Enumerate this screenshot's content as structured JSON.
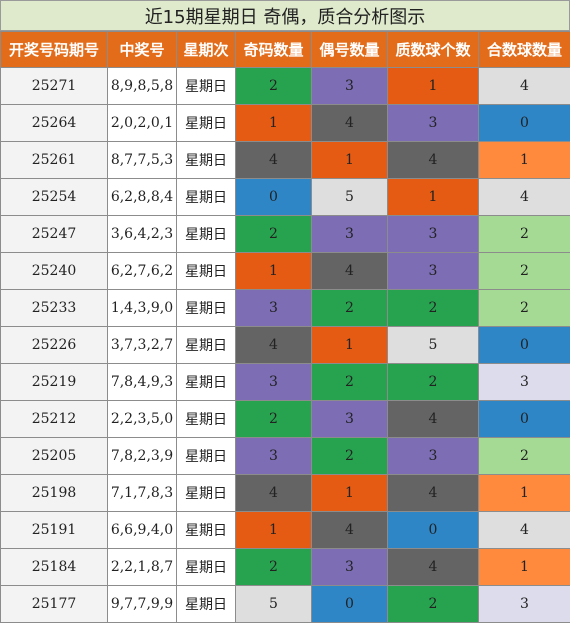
{
  "title": "近15期星期日 奇偶，质合分析图示",
  "headers": [
    "开奖号码期号",
    "中奖号",
    "星期次",
    "奇码数量",
    "偶号数量",
    "质数球个数",
    "合数球数量"
  ],
  "colors": {
    "header_bg": "#e36c1a",
    "title_bg": "#dfeacc",
    "green": "#27a350",
    "purple": "#7c6db4",
    "orange": "#e55b13",
    "dark_gray": "#646464",
    "blue": "#2e86c7",
    "light_gray": "#dedede",
    "light_orange": "#ff8a3d",
    "light_green": "#a4da94",
    "lavender": "#dcdcec"
  },
  "rows": [
    {
      "period": "25271",
      "numbers": "8,9,8,5,8",
      "weekday": "星期日",
      "odd": "2",
      "odd_color": "green",
      "even": "3",
      "even_color": "purple",
      "prime": "1",
      "prime_color": "orange",
      "composite": "4",
      "composite_color": "light_gray"
    },
    {
      "period": "25264",
      "numbers": "2,0,2,0,1",
      "weekday": "星期日",
      "odd": "1",
      "odd_color": "orange",
      "even": "4",
      "even_color": "dark_gray",
      "prime": "3",
      "prime_color": "purple",
      "composite": "0",
      "composite_color": "blue"
    },
    {
      "period": "25261",
      "numbers": "8,7,7,5,3",
      "weekday": "星期日",
      "odd": "4",
      "odd_color": "dark_gray",
      "even": "1",
      "even_color": "orange",
      "prime": "4",
      "prime_color": "dark_gray",
      "composite": "1",
      "composite_color": "light_orange"
    },
    {
      "period": "25254",
      "numbers": "6,2,8,8,4",
      "weekday": "星期日",
      "odd": "0",
      "odd_color": "blue",
      "even": "5",
      "even_color": "light_gray",
      "prime": "1",
      "prime_color": "orange",
      "composite": "4",
      "composite_color": "light_gray"
    },
    {
      "period": "25247",
      "numbers": "3,6,4,2,3",
      "weekday": "星期日",
      "odd": "2",
      "odd_color": "green",
      "even": "3",
      "even_color": "purple",
      "prime": "3",
      "prime_color": "purple",
      "composite": "2",
      "composite_color": "light_green"
    },
    {
      "period": "25240",
      "numbers": "6,2,7,6,2",
      "weekday": "星期日",
      "odd": "1",
      "odd_color": "orange",
      "even": "4",
      "even_color": "dark_gray",
      "prime": "3",
      "prime_color": "purple",
      "composite": "2",
      "composite_color": "light_green"
    },
    {
      "period": "25233",
      "numbers": "1,4,3,9,0",
      "weekday": "星期日",
      "odd": "3",
      "odd_color": "purple",
      "even": "2",
      "even_color": "green",
      "prime": "2",
      "prime_color": "green",
      "composite": "2",
      "composite_color": "light_green"
    },
    {
      "period": "25226",
      "numbers": "3,7,3,2,7",
      "weekday": "星期日",
      "odd": "4",
      "odd_color": "dark_gray",
      "even": "1",
      "even_color": "orange",
      "prime": "5",
      "prime_color": "light_gray",
      "composite": "0",
      "composite_color": "blue"
    },
    {
      "period": "25219",
      "numbers": "7,8,4,9,3",
      "weekday": "星期日",
      "odd": "3",
      "odd_color": "purple",
      "even": "2",
      "even_color": "green",
      "prime": "2",
      "prime_color": "green",
      "composite": "3",
      "composite_color": "lavender"
    },
    {
      "period": "25212",
      "numbers": "2,2,3,5,0",
      "weekday": "星期日",
      "odd": "2",
      "odd_color": "green",
      "even": "3",
      "even_color": "purple",
      "prime": "4",
      "prime_color": "dark_gray",
      "composite": "0",
      "composite_color": "blue"
    },
    {
      "period": "25205",
      "numbers": "7,8,2,3,9",
      "weekday": "星期日",
      "odd": "3",
      "odd_color": "purple",
      "even": "2",
      "even_color": "green",
      "prime": "3",
      "prime_color": "purple",
      "composite": "2",
      "composite_color": "light_green"
    },
    {
      "period": "25198",
      "numbers": "7,1,7,8,3",
      "weekday": "星期日",
      "odd": "4",
      "odd_color": "dark_gray",
      "even": "1",
      "even_color": "orange",
      "prime": "4",
      "prime_color": "dark_gray",
      "composite": "1",
      "composite_color": "light_orange"
    },
    {
      "period": "25191",
      "numbers": "6,6,9,4,0",
      "weekday": "星期日",
      "odd": "1",
      "odd_color": "orange",
      "even": "4",
      "even_color": "dark_gray",
      "prime": "0",
      "prime_color": "blue",
      "composite": "4",
      "composite_color": "light_gray"
    },
    {
      "period": "25184",
      "numbers": "2,2,1,8,7",
      "weekday": "星期日",
      "odd": "2",
      "odd_color": "green",
      "even": "3",
      "even_color": "purple",
      "prime": "4",
      "prime_color": "dark_gray",
      "composite": "1",
      "composite_color": "light_orange"
    },
    {
      "period": "25177",
      "numbers": "9,7,7,9,9",
      "weekday": "星期日",
      "odd": "5",
      "odd_color": "light_gray",
      "even": "0",
      "even_color": "blue",
      "prime": "2",
      "prime_color": "green",
      "composite": "3",
      "composite_color": "lavender"
    }
  ]
}
